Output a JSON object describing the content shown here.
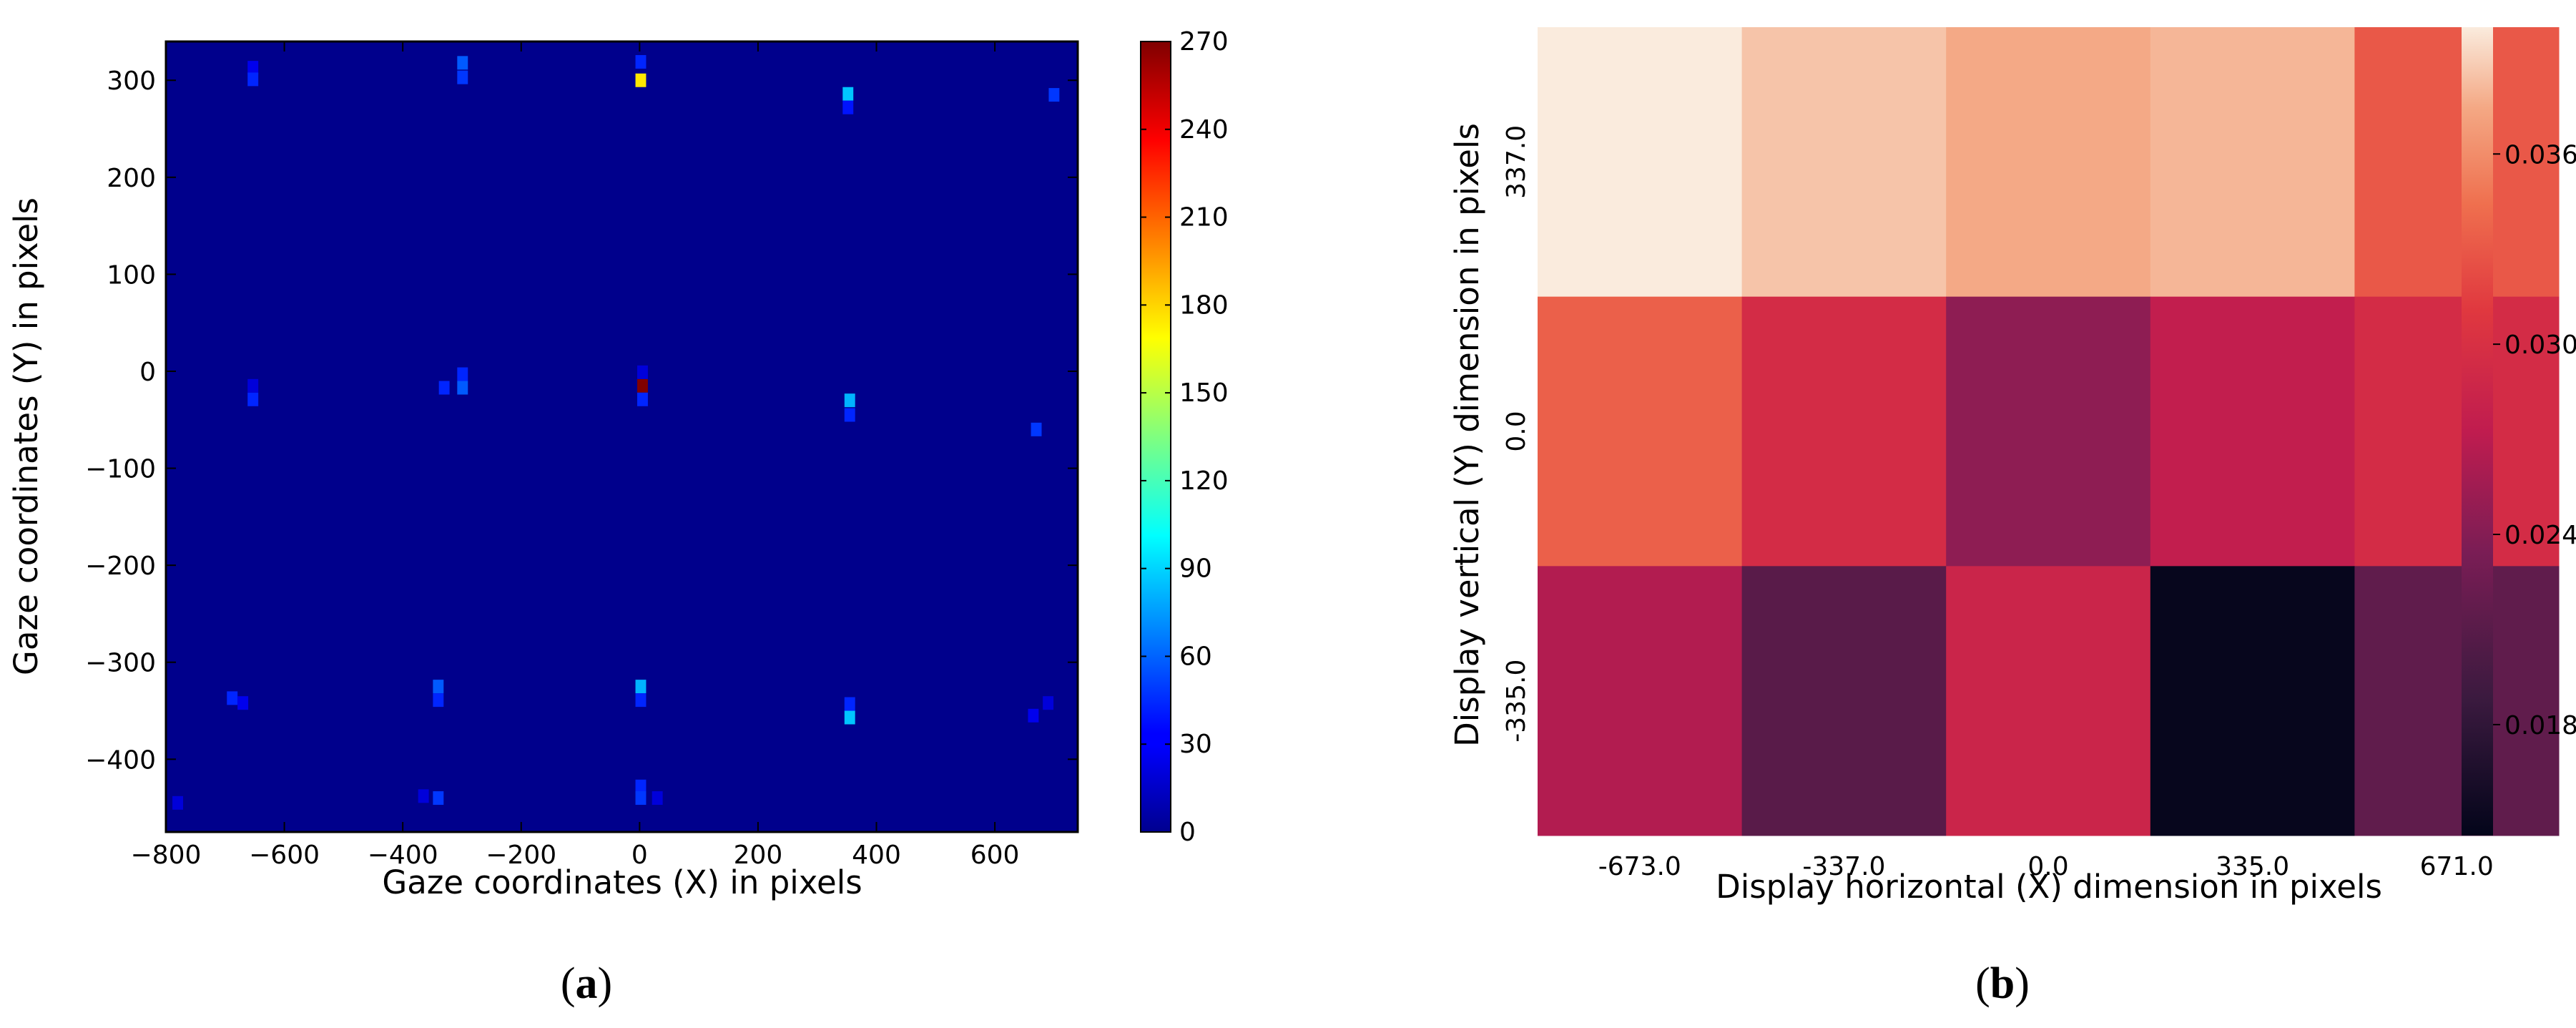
{
  "chart_data": [
    {
      "type": "heatmap",
      "panel": "a",
      "caption": {
        "open": "(",
        "letter": "a",
        "close": ")"
      },
      "xlabel": "Gaze coordinates (X) in pixels",
      "ylabel": "Gaze coordinates (Y) in pixels",
      "xlim": [
        -800,
        740
      ],
      "ylim": [
        -475,
        340
      ],
      "xticks": [
        -800,
        -600,
        -400,
        -200,
        0,
        200,
        400,
        600
      ],
      "xtick_labels": [
        "−800",
        "−600",
        "−400",
        "−200",
        "0",
        "200",
        "400",
        "600"
      ],
      "yticks": [
        300,
        200,
        100,
        0,
        -100,
        -200,
        -300,
        -400
      ],
      "ytick_labels": [
        "300",
        "200",
        "100",
        "0",
        "−100",
        "−200",
        "−300",
        "−400"
      ],
      "background_color": "#00008c",
      "colormap": "jet",
      "colorbar": {
        "min": 0,
        "max": 270,
        "ticks": [
          270,
          240,
          210,
          180,
          150,
          120,
          90,
          60,
          30,
          0
        ],
        "tick_labels": [
          "270",
          "240",
          "210",
          "180",
          "150",
          "120",
          "90",
          "60",
          "30",
          "0"
        ]
      },
      "bin_size": [
        18,
        14
      ],
      "cells": [
        {
          "x": -653,
          "y": 313,
          "value": 25
        },
        {
          "x": -653,
          "y": 301,
          "value": 40
        },
        {
          "x": -299,
          "y": 318,
          "value": 55
        },
        {
          "x": -299,
          "y": 303,
          "value": 45
        },
        {
          "x": 2,
          "y": 319,
          "value": 40
        },
        {
          "x": 2,
          "y": 300,
          "value": 175
        },
        {
          "x": 352,
          "y": 286,
          "value": 85
        },
        {
          "x": 352,
          "y": 272,
          "value": 35
        },
        {
          "x": 700,
          "y": 285,
          "value": 45
        },
        {
          "x": -653,
          "y": -29,
          "value": 40
        },
        {
          "x": -653,
          "y": -15,
          "value": 20
        },
        {
          "x": -299,
          "y": -3,
          "value": 40
        },
        {
          "x": -299,
          "y": -17,
          "value": 55
        },
        {
          "x": -330,
          "y": -17,
          "value": 40
        },
        {
          "x": 5,
          "y": -15,
          "value": 270
        },
        {
          "x": 5,
          "y": -29,
          "value": 40
        },
        {
          "x": 5,
          "y": -1,
          "value": 20
        },
        {
          "x": 355,
          "y": -30,
          "value": 80
        },
        {
          "x": 355,
          "y": -45,
          "value": 40
        },
        {
          "x": 670,
          "y": -60,
          "value": 45
        },
        {
          "x": -688,
          "y": -337,
          "value": 40
        },
        {
          "x": -670,
          "y": -342,
          "value": 25
        },
        {
          "x": -340,
          "y": -325,
          "value": 55
        },
        {
          "x": -340,
          "y": -339,
          "value": 40
        },
        {
          "x": 2,
          "y": -325,
          "value": 80
        },
        {
          "x": 2,
          "y": -339,
          "value": 40
        },
        {
          "x": 355,
          "y": -357,
          "value": 85
        },
        {
          "x": 355,
          "y": -343,
          "value": 40
        },
        {
          "x": 665,
          "y": -355,
          "value": 25
        },
        {
          "x": 690,
          "y": -342,
          "value": 20
        },
        {
          "x": -340,
          "y": -440,
          "value": 45
        },
        {
          "x": -365,
          "y": -438,
          "value": 20
        },
        {
          "x": 2,
          "y": -428,
          "value": 40
        },
        {
          "x": 2,
          "y": -440,
          "value": 45
        },
        {
          "x": 30,
          "y": -440,
          "value": 20
        },
        {
          "x": -780,
          "y": -445,
          "value": 20
        }
      ]
    },
    {
      "type": "heatmap",
      "panel": "b",
      "caption": {
        "open": "(",
        "letter": "b",
        "close": ")"
      },
      "xlabel": "Display horizontal (X) dimension in pixels",
      "ylabel": "Display vertical (Y) dimension in pixels",
      "x": [
        "-673.0",
        "-337.0",
        "0.0",
        "335.0",
        "671.0"
      ],
      "y": [
        "337.0",
        "0.0",
        "-335.0"
      ],
      "values": [
        [
          0.04,
          0.0385,
          0.0375,
          0.038,
          0.033
        ],
        [
          0.0335,
          0.0295,
          0.0245,
          0.0275,
          0.0295
        ],
        [
          0.0265,
          0.021,
          0.0285,
          0.0148,
          0.0215
        ]
      ],
      "colormap": "rocket",
      "colorbar": {
        "min": 0.0145,
        "max": 0.04,
        "ticks": [
          0.036,
          0.03,
          0.024,
          0.018
        ],
        "tick_labels": [
          "0.036",
          "0.030",
          "0.024",
          "0.018"
        ]
      }
    }
  ]
}
